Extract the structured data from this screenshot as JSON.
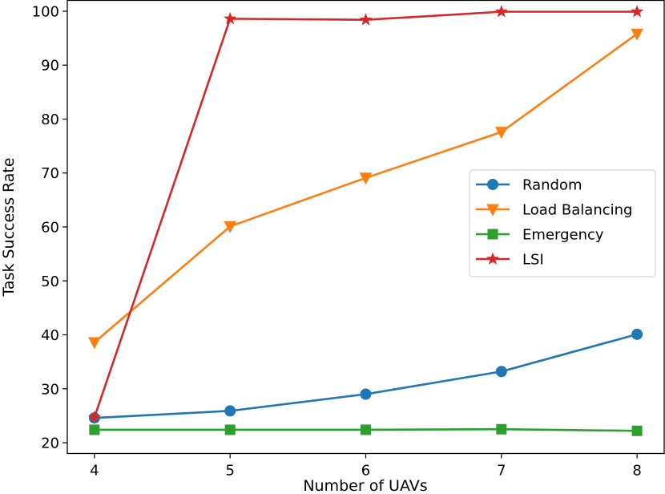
{
  "chart_data": {
    "type": "line",
    "title": "",
    "xlabel": "Number of UAVs",
    "ylabel": "Task Success Rate",
    "x": [
      4,
      5,
      6,
      7,
      8
    ],
    "xlim": [
      3.8,
      8.2
    ],
    "ylim": [
      18.0,
      102.0
    ],
    "xticks": [
      4,
      5,
      6,
      7,
      8
    ],
    "yticks": [
      20,
      30,
      40,
      50,
      60,
      70,
      80,
      90,
      100
    ],
    "grid": false,
    "legend_position": "center-right",
    "series": [
      {
        "name": "Random",
        "marker": "circle",
        "color": "#1f77b4",
        "values": [
          24.6,
          25.9,
          29.0,
          33.2,
          40.1
        ]
      },
      {
        "name": "Load Balancing",
        "marker": "triangle-down",
        "color": "#ff7f0e",
        "values": [
          38.6,
          60.1,
          69.1,
          77.6,
          95.8
        ]
      },
      {
        "name": "Emergency",
        "marker": "square",
        "color": "#2ca02c",
        "values": [
          22.4,
          22.4,
          22.4,
          22.5,
          22.2
        ]
      },
      {
        "name": "LSI",
        "marker": "star",
        "color": "#d62728",
        "values": [
          24.7,
          98.6,
          98.4,
          99.9,
          99.9
        ]
      }
    ]
  }
}
